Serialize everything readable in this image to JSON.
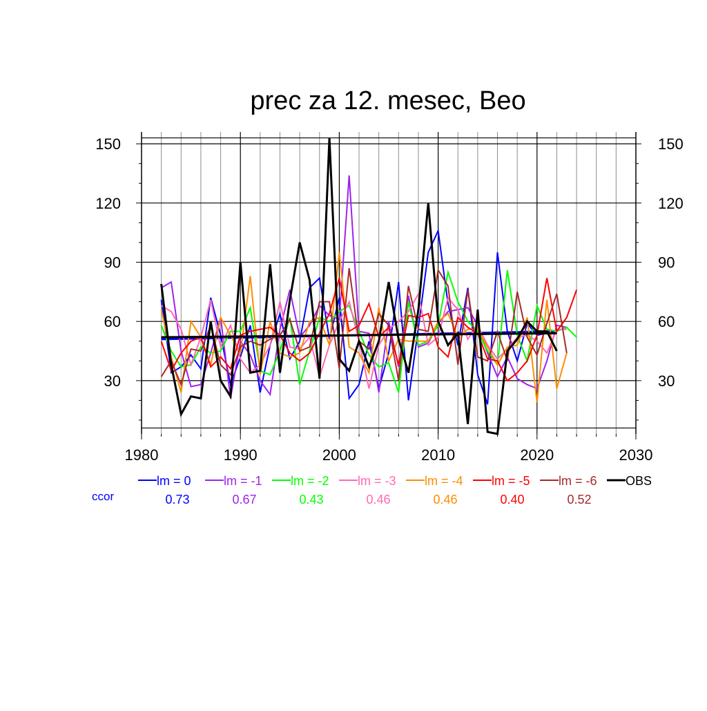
{
  "chart_data": {
    "type": "line",
    "title": "prec za 12. mesec, Beo",
    "xlabel": "",
    "ylabel": "",
    "xlim": [
      1980,
      2030
    ],
    "ylim": [
      3,
      156
    ],
    "x_ticks": [
      1980,
      1990,
      2000,
      2010,
      2020,
      2030
    ],
    "y_ticks": [
      30,
      60,
      90,
      120,
      150
    ],
    "grid": true,
    "legend_position": "bottom",
    "ccor_label": "ccor",
    "series": [
      {
        "name": "lm = 0",
        "color": "#0000ff",
        "ccor": "0.73",
        "x_start": 1982,
        "values": [
          71,
          34,
          37,
          43,
          36,
          72,
          53,
          28,
          42,
          58,
          24,
          48,
          64,
          41,
          50,
          77,
          82,
          51,
          72,
          21,
          28,
          50,
          26,
          44,
          80,
          20,
          57,
          95,
          106,
          69,
          48,
          77,
          33,
          18,
          95,
          55,
          40,
          59,
          53,
          54,
          54
        ],
        "trend": [
          51,
          55
        ]
      },
      {
        "name": "lm = -1",
        "color": "#a020f0",
        "ccor": "0.67",
        "x_start": 1982,
        "values": [
          77,
          80,
          45,
          27,
          28,
          44,
          62,
          21,
          50,
          43,
          30,
          23,
          56,
          76,
          52,
          58,
          68,
          63,
          61,
          134,
          55,
          54,
          24,
          60,
          37,
          73,
          47,
          49,
          59,
          65,
          66,
          67,
          58,
          44,
          32,
          42,
          31,
          28,
          26,
          40,
          58,
          57
        ],
        "trend": []
      },
      {
        "name": "lm = -2",
        "color": "#00ff00",
        "ccor": "0.43",
        "x_start": 1982,
        "values": [
          58,
          45,
          37,
          38,
          47,
          44,
          45,
          55,
          55,
          67,
          35,
          33,
          45,
          62,
          28,
          45,
          62,
          60,
          65,
          68,
          55,
          43,
          37,
          39,
          24,
          70,
          48,
          50,
          58,
          85,
          70,
          60,
          55,
          45,
          38,
          86,
          53,
          40,
          68,
          56,
          55,
          57,
          52
        ],
        "trend": []
      },
      {
        "name": "lm = -3",
        "color": "#ff69b4",
        "ccor": "0.46",
        "x_start": 1982,
        "values": [
          68,
          65,
          56,
          38,
          52,
          71,
          47,
          58,
          41,
          34,
          38,
          48,
          70,
          47,
          46,
          52,
          32,
          48,
          60,
          70,
          50,
          26,
          48,
          56,
          60,
          65,
          74,
          48,
          52,
          72,
          66,
          51,
          58,
          48,
          41,
          46,
          52,
          53,
          50,
          44,
          56,
          56
        ],
        "trend": []
      },
      {
        "name": "lm = -4",
        "color": "#ff8c00",
        "ccor": "0.46",
        "x_start": 1982,
        "values": [
          66,
          42,
          24,
          60,
          52,
          38,
          62,
          53,
          44,
          83,
          33,
          60,
          44,
          42,
          44,
          60,
          62,
          48,
          95,
          47,
          44,
          34,
          67,
          40,
          51,
          50,
          50,
          50,
          60,
          64,
          52,
          56,
          56,
          47,
          38,
          47,
          48,
          62,
          19,
          71,
          26,
          44
        ],
        "trend": []
      },
      {
        "name": "lm = -5",
        "color": "#ff0000",
        "ccor": "0.40",
        "x_start": 1982,
        "values": [
          50,
          35,
          44,
          50,
          52,
          37,
          42,
          36,
          53,
          55,
          56,
          57,
          53,
          44,
          40,
          44,
          54,
          64,
          82,
          55,
          58,
          69,
          52,
          57,
          38,
          63,
          62,
          64,
          47,
          42,
          62,
          57,
          54,
          41,
          40,
          30,
          34,
          40,
          53,
          82,
          55,
          62,
          76
        ],
        "trend": []
      },
      {
        "name": "lm = -6",
        "color": "#a52a2a",
        "ccor": "0.52",
        "x_start": 1982,
        "values": [
          32,
          40,
          28,
          46,
          45,
          58,
          38,
          33,
          47,
          50,
          48,
          51,
          53,
          61,
          45,
          47,
          70,
          70,
          36,
          87,
          50,
          46,
          64,
          58,
          30,
          78,
          56,
          55,
          86,
          78,
          38,
          76,
          42,
          40,
          55,
          40,
          75,
          52,
          43,
          59,
          74,
          44
        ],
        "trend": []
      },
      {
        "name": "OBS",
        "color": "#000000",
        "ccor": "",
        "x_start": 1982,
        "values": [
          79,
          38,
          13,
          22,
          21,
          60,
          30,
          22,
          90,
          34,
          35,
          89,
          34,
          71,
          100,
          81,
          31,
          153,
          41,
          35,
          50,
          37,
          50,
          80,
          51,
          34,
          66,
          120,
          60,
          48,
          54,
          8,
          66,
          4,
          3,
          45,
          51,
          60,
          55,
          55,
          45
        ],
        "trend": [
          52,
          54
        ]
      }
    ]
  }
}
